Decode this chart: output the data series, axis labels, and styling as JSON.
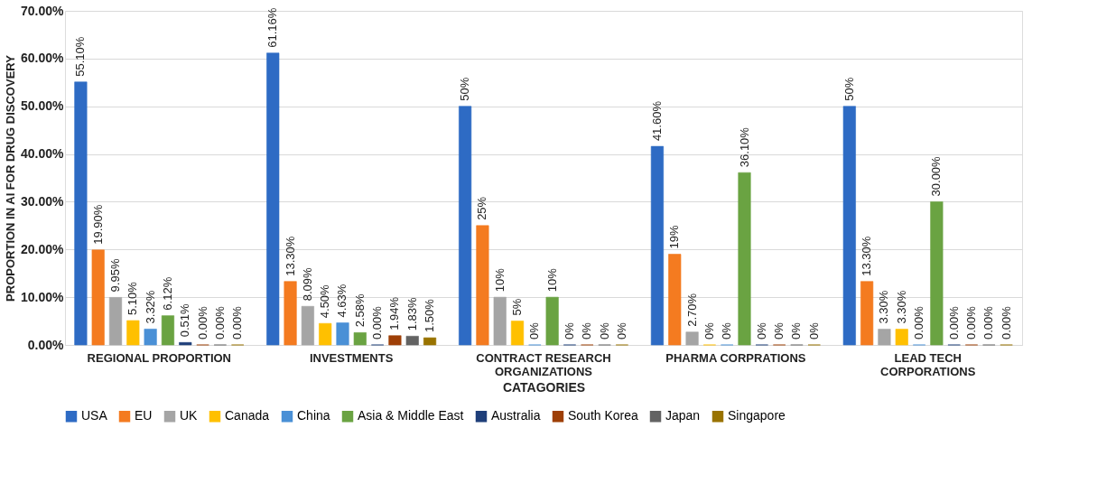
{
  "chart_data": {
    "type": "bar",
    "xlabel": "CATAGORIES",
    "ylabel": "PROPORTION IN AI FOR DRUG DISCOVERY",
    "categories": [
      "REGIONAL PROPORTION",
      "INVESTMENTS",
      "CONTRACT RESEARCH ORGANIZATIONS",
      "PHARMA CORPRATIONS",
      "LEAD TECH CORPORATIONS"
    ],
    "ylim": [
      0,
      70
    ],
    "yticks": [
      {
        "value": 0,
        "label": "0.00%"
      },
      {
        "value": 10,
        "label": "10.00%"
      },
      {
        "value": 20,
        "label": "20.00%"
      },
      {
        "value": 30,
        "label": "30.00%"
      },
      {
        "value": 40,
        "label": "40.00%"
      },
      {
        "value": 50,
        "label": "50.00%"
      },
      {
        "value": 60,
        "label": "60.00%"
      },
      {
        "value": 70,
        "label": "70.00%"
      }
    ],
    "grid": "y",
    "legend": "bottom",
    "series": [
      {
        "name": "USA",
        "color": "#2e6bc4",
        "values": [
          55.1,
          61.16,
          50,
          41.6,
          50
        ],
        "value_labels": [
          "55.10%",
          "61.16%",
          "50%",
          "41.60%",
          "50%"
        ]
      },
      {
        "name": "EU",
        "color": "#f47b20",
        "values": [
          19.9,
          13.3,
          25,
          19,
          13.3
        ],
        "value_labels": [
          "19.90%",
          "13.30%",
          "25%",
          "19%",
          "13.30%"
        ]
      },
      {
        "name": "UK",
        "color": "#a5a5a5",
        "values": [
          9.95,
          8.09,
          10,
          2.7,
          3.3
        ],
        "value_labels": [
          "9.95%",
          "8.09%",
          "10%",
          "2.70%",
          "3.30%"
        ]
      },
      {
        "name": "Canada",
        "color": "#ffc000",
        "values": [
          5.1,
          4.5,
          5,
          0,
          3.3
        ],
        "value_labels": [
          "5.10%",
          "4.50%",
          "5%",
          "0%",
          "3.30%"
        ]
      },
      {
        "name": "China",
        "color": "#4a90d6",
        "values": [
          3.32,
          4.63,
          0,
          0,
          0
        ],
        "value_labels": [
          "3.32%",
          "4.63%",
          "0%",
          "0%",
          "0.00%"
        ]
      },
      {
        "name": "Asia & Middle East",
        "color": "#6aa342",
        "values": [
          6.12,
          2.58,
          10,
          36.1,
          30.0
        ],
        "value_labels": [
          "6.12%",
          "2.58%",
          "10%",
          "36.10%",
          "30.00%"
        ]
      },
      {
        "name": "Australia",
        "color": "#1f3f7a",
        "values": [
          0.51,
          0,
          0,
          0,
          0
        ],
        "value_labels": [
          "0.51%",
          "0.00%",
          "0%",
          "0%",
          "0.00%"
        ]
      },
      {
        "name": "South Korea",
        "color": "#9e3f06",
        "values": [
          0,
          1.94,
          0,
          0,
          0
        ],
        "value_labels": [
          "0.00%",
          "1.94%",
          "0%",
          "0%",
          "0.00%"
        ]
      },
      {
        "name": "Japan",
        "color": "#636363",
        "values": [
          0,
          1.83,
          0,
          0,
          0
        ],
        "value_labels": [
          "0.00%",
          "1.83%",
          "0%",
          "0%",
          "0.00%"
        ]
      },
      {
        "name": "Singapore",
        "color": "#997300",
        "values": [
          0,
          1.5,
          0,
          0,
          0
        ],
        "value_labels": [
          "0.00%",
          "1.50%",
          "0%",
          "0%",
          "0.00%"
        ]
      }
    ]
  }
}
